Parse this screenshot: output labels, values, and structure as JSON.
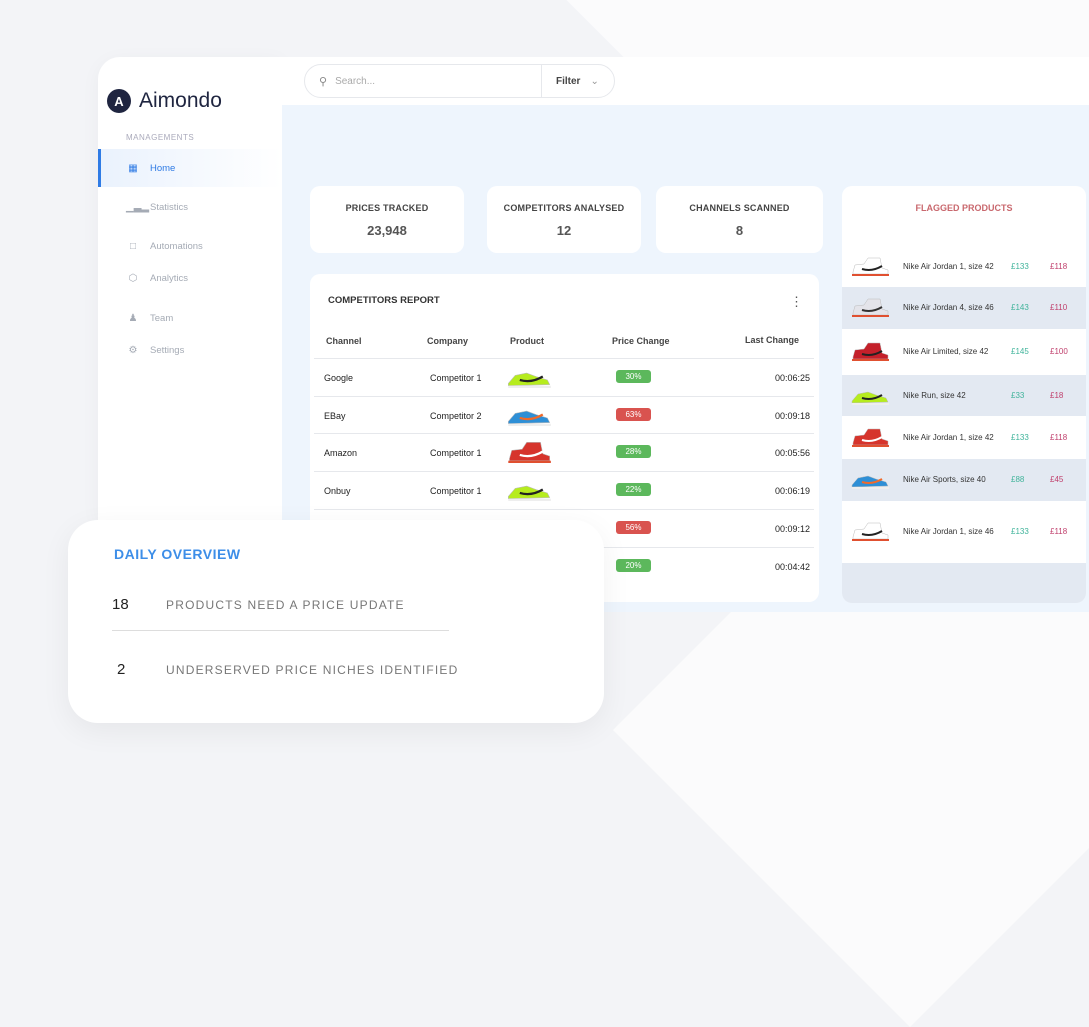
{
  "brand": {
    "name": "Aimondo",
    "logo_letter": "A"
  },
  "sidebar": {
    "section": "MANAGEMENTS",
    "items": [
      {
        "label": "Home",
        "icon": "grid-icon",
        "active": true
      },
      {
        "label": "Statistics",
        "icon": "bar-chart-icon"
      },
      {
        "label": "Automations",
        "icon": "clipboard-icon"
      },
      {
        "label": "Analytics",
        "icon": "cube-icon"
      },
      {
        "label": "Team",
        "icon": "users-icon"
      },
      {
        "label": "Settings",
        "icon": "gear-icon"
      }
    ]
  },
  "search": {
    "placeholder": "Search...",
    "filter_label": "Filter"
  },
  "stats": [
    {
      "title": "PRICES TRACKED",
      "value": "23,948"
    },
    {
      "title": "COMPETITORS ANALYSED",
      "value": "12"
    },
    {
      "title": "CHANNELS SCANNED",
      "value": "8"
    }
  ],
  "report": {
    "title": "COMPETITORS REPORT",
    "columns": [
      "Channel",
      "Company",
      "Product",
      "Price Change",
      "Last Change"
    ],
    "rows": [
      {
        "channel": "Google",
        "company": "Competitor 1",
        "product": "green-runner",
        "change": "30%",
        "dir": "up",
        "last": "00:06:25"
      },
      {
        "channel": "EBay",
        "company": "Competitor 2",
        "product": "blue-runner",
        "change": "63%",
        "dir": "down",
        "last": "00:09:18"
      },
      {
        "channel": "Amazon",
        "company": "Competitor 1",
        "product": "red-jordan",
        "change": "28%",
        "dir": "up",
        "last": "00:05:56"
      },
      {
        "channel": "Onbuy",
        "company": "Competitor 1",
        "product": "green-runner",
        "change": "22%",
        "dir": "up",
        "last": "00:06:19"
      },
      {
        "channel": "",
        "company": "",
        "product": "",
        "change": "56%",
        "dir": "down",
        "last": "00:09:12"
      },
      {
        "channel": "",
        "company": "",
        "product": "",
        "change": "20%",
        "dir": "up",
        "last": "00:04:42"
      }
    ]
  },
  "flagged": {
    "title": "FLAGGED PRODUCTS",
    "items": [
      {
        "name": "Nike Air Jordan 1, size 42",
        "price": "£133",
        "competitor_price": "£118",
        "shoe": "white-jordan"
      },
      {
        "name": "Nike Air Jordan 4, size 46",
        "price": "£143",
        "competitor_price": "£110",
        "shoe": "grey-jordan"
      },
      {
        "name": "Nike Air Limited, size 42",
        "price": "£145",
        "competitor_price": "£100",
        "shoe": "black-red-jordan"
      },
      {
        "name": "Nike Run, size 42",
        "price": "£33",
        "competitor_price": "£18",
        "shoe": "green-runner"
      },
      {
        "name": "Nike Air Jordan 1, size 42",
        "price": "£133",
        "competitor_price": "£118",
        "shoe": "red-jordan"
      },
      {
        "name": "Nike Air Sports, size 40",
        "price": "£88",
        "competitor_price": "£45",
        "shoe": "blue-runner"
      },
      {
        "name": "Nike Air Jordan 1, size 46",
        "price": "£133",
        "competitor_price": "£118",
        "shoe": "white-jordan"
      }
    ]
  },
  "daily": {
    "title": "DAILY OVERVIEW",
    "items": [
      {
        "value": "18",
        "label": "PRODUCTS NEED A PRICE UPDATE"
      },
      {
        "value": "2",
        "label": "UNDERSERVED PRICE NICHES IDENTIFIED"
      }
    ]
  },
  "colors": {
    "accent": "#2f7be5",
    "up": "#5cb85c",
    "down": "#d9534f",
    "price": "#3fb39a",
    "competitor_price": "#c0406d"
  }
}
